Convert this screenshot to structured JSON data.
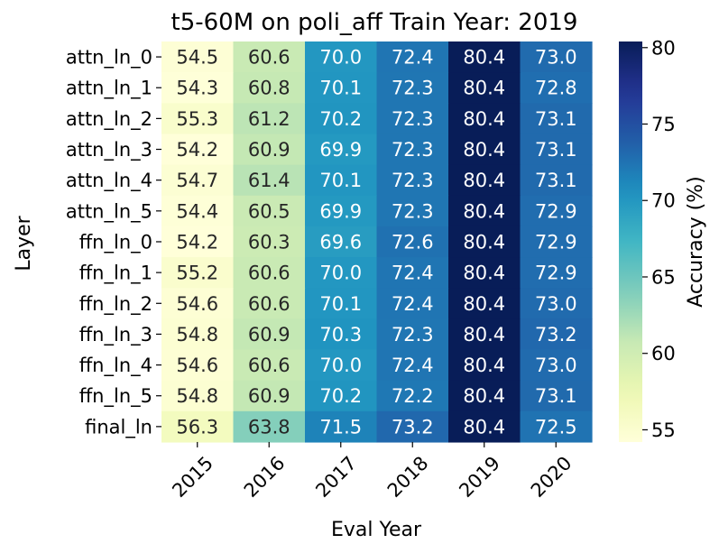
{
  "chart_data": {
    "type": "heatmap",
    "title": "t5-60M on poli_aff Train Year: 2019",
    "xlabel": "Eval Year",
    "ylabel": "Layer",
    "colorbar_label": "Accuracy (%)",
    "colormap": "YlGnBu",
    "vmin": 54.2,
    "vmax": 80.4,
    "colorbar_ticks": [
      55,
      60,
      65,
      70,
      75,
      80
    ],
    "colorbar_tick_labels": [
      "55",
      "60",
      "65",
      "70",
      "75",
      "80"
    ],
    "x_categories": [
      "2015",
      "2016",
      "2017",
      "2018",
      "2019",
      "2020"
    ],
    "y_categories": [
      "attn_ln_0",
      "attn_ln_1",
      "attn_ln_2",
      "attn_ln_3",
      "attn_ln_4",
      "attn_ln_5",
      "ffn_ln_0",
      "ffn_ln_1",
      "ffn_ln_2",
      "ffn_ln_3",
      "ffn_ln_4",
      "ffn_ln_5",
      "final_ln"
    ],
    "values": [
      [
        54.5,
        60.6,
        70.0,
        72.4,
        80.4,
        73.0
      ],
      [
        54.3,
        60.8,
        70.1,
        72.3,
        80.4,
        72.8
      ],
      [
        55.3,
        61.2,
        70.2,
        72.3,
        80.4,
        73.1
      ],
      [
        54.2,
        60.9,
        69.9,
        72.3,
        80.4,
        73.1
      ],
      [
        54.7,
        61.4,
        70.1,
        72.3,
        80.4,
        73.1
      ],
      [
        54.4,
        60.5,
        69.9,
        72.3,
        80.4,
        72.9
      ],
      [
        54.2,
        60.3,
        69.6,
        72.6,
        80.4,
        72.9
      ],
      [
        55.2,
        60.6,
        70.0,
        72.4,
        80.4,
        72.9
      ],
      [
        54.6,
        60.6,
        70.1,
        72.4,
        80.4,
        73.0
      ],
      [
        54.8,
        60.9,
        70.3,
        72.3,
        80.4,
        73.2
      ],
      [
        54.6,
        60.6,
        70.0,
        72.4,
        80.4,
        73.0
      ],
      [
        54.8,
        60.9,
        70.2,
        72.2,
        80.4,
        73.1
      ],
      [
        56.3,
        63.8,
        71.5,
        73.2,
        80.4,
        72.5
      ]
    ],
    "value_labels": [
      [
        "54.5",
        "60.6",
        "70.0",
        "72.4",
        "80.4",
        "73.0"
      ],
      [
        "54.3",
        "60.8",
        "70.1",
        "72.3",
        "80.4",
        "72.8"
      ],
      [
        "55.3",
        "61.2",
        "70.2",
        "72.3",
        "80.4",
        "73.1"
      ],
      [
        "54.2",
        "60.9",
        "69.9",
        "72.3",
        "80.4",
        "73.1"
      ],
      [
        "54.7",
        "61.4",
        "70.1",
        "72.3",
        "80.4",
        "73.1"
      ],
      [
        "54.4",
        "60.5",
        "69.9",
        "72.3",
        "80.4",
        "72.9"
      ],
      [
        "54.2",
        "60.3",
        "69.6",
        "72.6",
        "80.4",
        "72.9"
      ],
      [
        "55.2",
        "60.6",
        "70.0",
        "72.4",
        "80.4",
        "72.9"
      ],
      [
        "54.6",
        "60.6",
        "70.1",
        "72.4",
        "80.4",
        "73.0"
      ],
      [
        "54.8",
        "60.9",
        "70.3",
        "72.3",
        "80.4",
        "73.2"
      ],
      [
        "54.6",
        "60.6",
        "70.0",
        "72.4",
        "80.4",
        "73.0"
      ],
      [
        "54.8",
        "60.9",
        "70.2",
        "72.2",
        "80.4",
        "73.1"
      ],
      [
        "56.3",
        "63.8",
        "71.5",
        "73.2",
        "80.4",
        "72.5"
      ]
    ]
  }
}
